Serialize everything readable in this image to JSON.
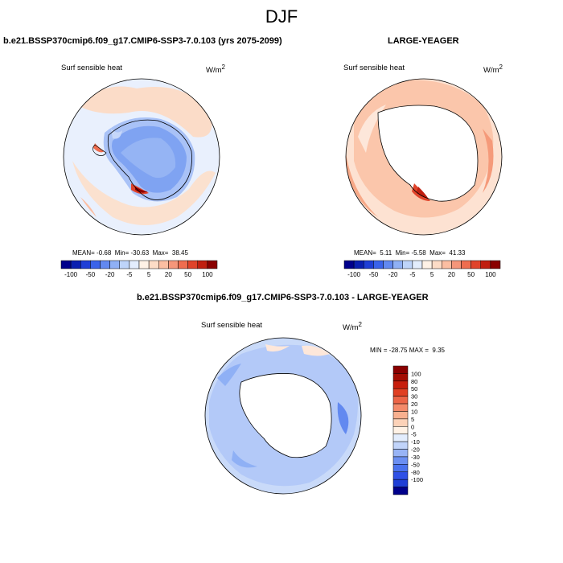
{
  "title": "DJF",
  "panels": [
    {
      "heading": "b.e21.BSSP370cmip6.f09_g17.CMIP6-SSP3-7.0.103 (yrs 2075-2099)",
      "variable": "Surf sensible heat",
      "units": "W/m",
      "units_exp": "2",
      "stats": {
        "mean_label": "MEAN=",
        "mean": "-0.68",
        "min_label": "Min=",
        "min": "-30.63",
        "max_label": "Max=",
        "max": "38.45"
      }
    },
    {
      "heading": "LARGE-YEAGER",
      "variable": "Surf sensible heat",
      "units": "W/m",
      "units_exp": "2",
      "stats": {
        "mean_label": "MEAN=",
        "mean": "5.11",
        "min_label": "Min=",
        "min": "-5.58",
        "max_label": "Max=",
        "max": "41.33"
      }
    },
    {
      "heading": "b.e21.BSSP370cmip6.f09_g17.CMIP6-SSP3-7.0.103 - LARGE-YEAGER",
      "variable": "Surf sensible heat",
      "units": "W/m",
      "units_exp": "2",
      "stats": {
        "min_label": "MIN =",
        "min": "-28.75",
        "max_label": "MAX =",
        "max": "9.35"
      }
    }
  ],
  "colorbar_main": {
    "colors": [
      "#00008b",
      "#0a1fb0",
      "#1f3fd6",
      "#3a63ea",
      "#6289f0",
      "#8fb0f5",
      "#bed4fa",
      "#e3edfd",
      "#fff2e6",
      "#fddcc6",
      "#fbbea2",
      "#f5967a",
      "#ef6d4f",
      "#e0432a",
      "#c01f10",
      "#8a0000"
    ],
    "labels": [
      "-100",
      "-50",
      "-20",
      "-5",
      "5",
      "20",
      "50",
      "100"
    ]
  },
  "colorbar_diff": {
    "colors": [
      "#00008b",
      "#1f3fd6",
      "#2f50e6",
      "#4a72ee",
      "#6b8ff2",
      "#98b4f6",
      "#c1d4fa",
      "#e3edfd",
      "#fff2e6",
      "#fcd2b8",
      "#f9b08f",
      "#f48a6a",
      "#ec6446",
      "#e03f22",
      "#c71e0c",
      "#a30d03",
      "#8a0000"
    ],
    "labels": [
      "100",
      "80",
      "50",
      "30",
      "20",
      "10",
      "5",
      "0",
      "-5",
      "-10",
      "-20",
      "-30",
      "-50",
      "-80",
      "-100"
    ]
  },
  "map_colors": {
    "ocean": "#dfeafd",
    "land": "#ffffff",
    "coast": "#000000"
  }
}
